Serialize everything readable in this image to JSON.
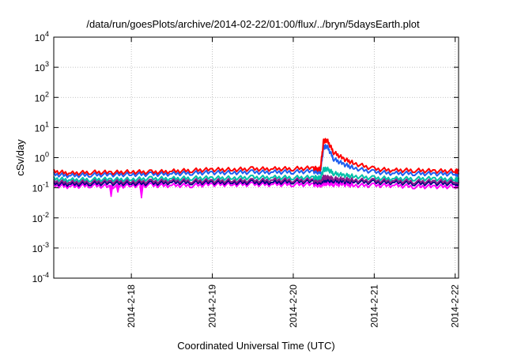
{
  "chart_data": {
    "type": "line",
    "title": "/data/run/goesPlots/archive/2014-02-22/01:00/flux/../bryn/5daysEarth.plot",
    "xlabel": "Coordinated Universal Time (UTC)",
    "ylabel": "cSv/day",
    "yscale": "log",
    "ylim": [
      0.0001,
      10000
    ],
    "xlim": [
      "2014-02-17 01:00",
      "2014-02-22 01:00"
    ],
    "grid": true,
    "y_ticks": [
      {
        "base": "10",
        "exp": "-4",
        "value": 0.0001
      },
      {
        "base": "10",
        "exp": "-3",
        "value": 0.001
      },
      {
        "base": "10",
        "exp": "-2",
        "value": 0.01
      },
      {
        "base": "10",
        "exp": "-1",
        "value": 0.1
      },
      {
        "base": "10",
        "exp": "0",
        "value": 1
      },
      {
        "base": "10",
        "exp": "1",
        "value": 10
      },
      {
        "base": "10",
        "exp": "2",
        "value": 100
      },
      {
        "base": "10",
        "exp": "3",
        "value": 1000
      },
      {
        "base": "10",
        "exp": "4",
        "value": 10000
      }
    ],
    "x_ticks": [
      {
        "label": "2014-2-18",
        "value": "2014-02-18 00:00"
      },
      {
        "label": "2014-2-19",
        "value": "2014-02-19 00:00"
      },
      {
        "label": "2014-2-20",
        "value": "2014-02-20 00:00"
      },
      {
        "label": "2014-2-21",
        "value": "2014-02-21 00:00"
      },
      {
        "label": "2014-2-22",
        "value": "2014-02-22 00:00"
      }
    ],
    "x": [
      "2014-02-17 01:00",
      "2014-02-17 06:00",
      "2014-02-17 12:00",
      "2014-02-17 18:00",
      "2014-02-18 00:00",
      "2014-02-18 06:00",
      "2014-02-18 12:00",
      "2014-02-18 18:00",
      "2014-02-19 00:00",
      "2014-02-19 06:00",
      "2014-02-19 12:00",
      "2014-02-19 18:00",
      "2014-02-20 00:00",
      "2014-02-20 06:00",
      "2014-02-20 08:00",
      "2014-02-20 09:00",
      "2014-02-20 10:00",
      "2014-02-20 12:00",
      "2014-02-20 15:00",
      "2014-02-20 18:00",
      "2014-02-21 00:00",
      "2014-02-21 06:00",
      "2014-02-21 12:00",
      "2014-02-21 18:00",
      "2014-02-22 00:00",
      "2014-02-22 01:00"
    ],
    "series": [
      {
        "color": "#ff0000",
        "values": [
          0.35,
          0.3,
          0.33,
          0.32,
          0.34,
          0.33,
          0.35,
          0.38,
          0.4,
          0.4,
          0.42,
          0.42,
          0.43,
          0.45,
          0.4,
          3.5,
          3.8,
          1.5,
          0.9,
          0.65,
          0.42,
          0.38,
          0.38,
          0.36,
          0.36,
          0.35
        ]
      },
      {
        "color": "#1e5ff0",
        "values": [
          0.28,
          0.25,
          0.27,
          0.27,
          0.28,
          0.28,
          0.29,
          0.31,
          0.32,
          0.32,
          0.33,
          0.33,
          0.34,
          0.35,
          0.32,
          2.2,
          2.4,
          0.9,
          0.6,
          0.45,
          0.33,
          0.3,
          0.3,
          0.29,
          0.29,
          0.28
        ]
      },
      {
        "color": "#00c0a8",
        "values": [
          0.2,
          0.18,
          0.19,
          0.19,
          0.19,
          0.2,
          0.2,
          0.21,
          0.21,
          0.21,
          0.22,
          0.22,
          0.22,
          0.22,
          0.21,
          0.4,
          0.42,
          0.3,
          0.26,
          0.24,
          0.21,
          0.2,
          0.2,
          0.2,
          0.19,
          0.19
        ]
      },
      {
        "color": "#8b1a8b",
        "values": [
          0.16,
          0.15,
          0.16,
          0.16,
          0.16,
          0.16,
          0.17,
          0.17,
          0.17,
          0.17,
          0.17,
          0.18,
          0.18,
          0.18,
          0.17,
          0.22,
          0.22,
          0.2,
          0.19,
          0.18,
          0.17,
          0.17,
          0.16,
          0.16,
          0.16,
          0.16
        ]
      },
      {
        "color": "#000080",
        "values": [
          0.14,
          0.13,
          0.14,
          0.14,
          0.14,
          0.14,
          0.15,
          0.15,
          0.15,
          0.15,
          0.15,
          0.15,
          0.16,
          0.16,
          0.15,
          0.18,
          0.18,
          0.17,
          0.16,
          0.16,
          0.15,
          0.15,
          0.14,
          0.14,
          0.14,
          0.14
        ]
      },
      {
        "color": "#ff00ff",
        "values": [
          0.12,
          0.11,
          0.12,
          0.11,
          0.12,
          0.12,
          0.12,
          0.12,
          0.13,
          0.13,
          0.13,
          0.13,
          0.13,
          0.13,
          0.12,
          0.14,
          0.14,
          0.13,
          0.13,
          0.12,
          0.12,
          0.12,
          0.11,
          0.11,
          0.11,
          0.12
        ],
        "dips": [
          {
            "x": "2014-02-17 18:00",
            "value": 0.05
          },
          {
            "x": "2014-02-18 03:00",
            "value": 0.045
          },
          {
            "x": "2014-02-17 20:00",
            "value": 0.07
          }
        ]
      }
    ]
  }
}
